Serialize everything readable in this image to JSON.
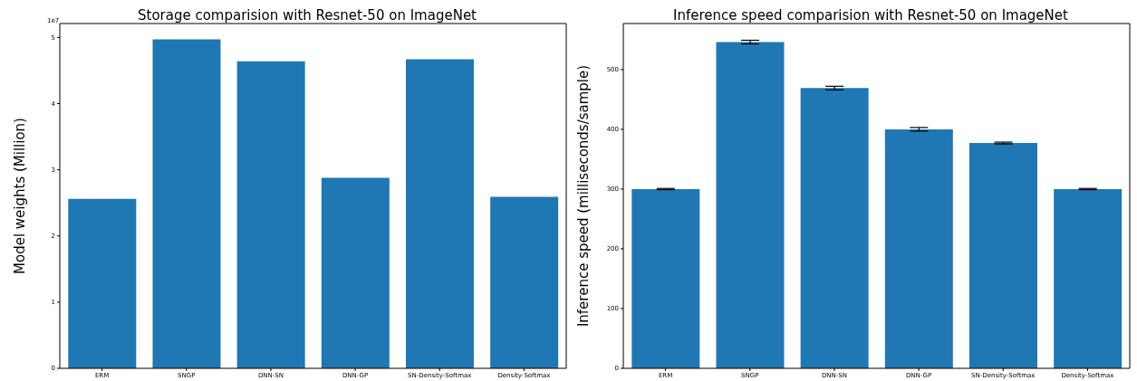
{
  "chart_data": [
    {
      "type": "bar",
      "title": "Storage comparision with Resnet-50 on ImageNet",
      "ylabel": "Model weights (Million)",
      "categories": [
        "ERM",
        "SNGP",
        "DNN-SN",
        "DNN-GP",
        "SN-Density-Softmax",
        "Density-Softmax"
      ],
      "values": [
        2.56,
        4.97,
        4.64,
        2.88,
        4.67,
        2.59
      ],
      "color": "#1f77b4",
      "ylim": [
        0,
        5.21
      ],
      "yticks": [
        0,
        1,
        2,
        3,
        4,
        5
      ],
      "annotations": [
        "1e7"
      ],
      "grid": false,
      "legend": false
    },
    {
      "type": "bar",
      "title": "Inference speed comparision with Resnet-50 on ImageNet",
      "ylabel": "Inference speed (milliseconds/sample)",
      "categories": [
        "ERM",
        "SNGP",
        "DNN-SN",
        "DNN-GP",
        "SN-Density-Softmax",
        "Density-Softmax"
      ],
      "values": [
        300,
        546,
        469,
        400,
        377,
        300
      ],
      "errors": [
        1,
        3,
        3,
        3,
        1.5,
        1
      ],
      "color": "#1f77b4",
      "ylim": [
        0,
        577
      ],
      "yticks": [
        0,
        100,
        200,
        300,
        400,
        500
      ],
      "grid": false,
      "legend": false
    }
  ]
}
